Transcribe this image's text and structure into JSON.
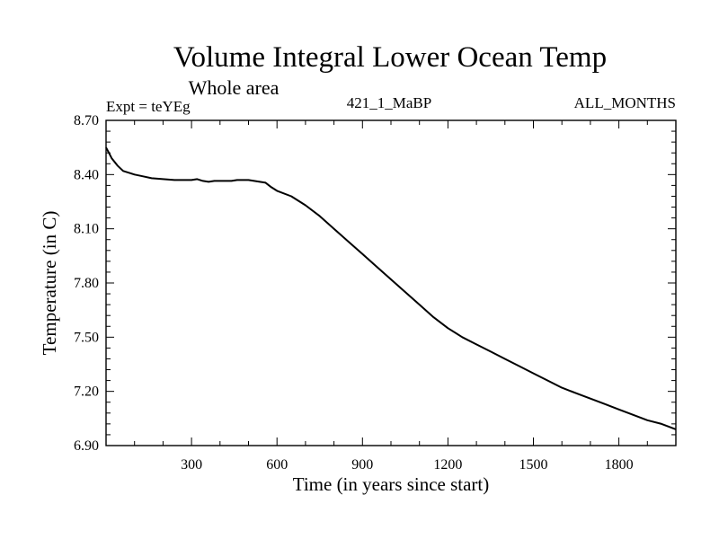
{
  "chart_data": {
    "type": "line",
    "title": "Volume Integral Lower Ocean Temp",
    "subtitle": "Whole area",
    "header_left": "Expt = teYEg",
    "header_center": "421_1_MaBP",
    "header_right": "ALL_MONTHS",
    "xlabel": "Time (in years since start)",
    "ylabel": "Temperature (in C)",
    "xlim": [
      0,
      2000
    ],
    "ylim": [
      6.9,
      8.7
    ],
    "xticks": [
      300,
      600,
      900,
      1200,
      1500,
      1800
    ],
    "xticklabels": [
      "300",
      "600",
      "900",
      "1200",
      "1500",
      "1800"
    ],
    "yticks": [
      6.9,
      7.2,
      7.5,
      7.8,
      8.1,
      8.4,
      8.7
    ],
    "yticklabels": [
      "6.90",
      "7.20",
      "7.50",
      "7.80",
      "8.10",
      "8.40",
      "8.70"
    ],
    "series": [
      {
        "name": "Volume integral lower ocean temperature",
        "x": [
          0,
          10,
          20,
          40,
          60,
          80,
          100,
          130,
          160,
          200,
          240,
          280,
          300,
          320,
          340,
          360,
          380,
          400,
          420,
          440,
          460,
          480,
          500,
          520,
          540,
          560,
          580,
          600,
          650,
          700,
          750,
          800,
          850,
          900,
          950,
          1000,
          1050,
          1100,
          1150,
          1200,
          1250,
          1300,
          1350,
          1400,
          1450,
          1500,
          1550,
          1600,
          1650,
          1700,
          1750,
          1800,
          1850,
          1900,
          1950,
          2000
        ],
        "values": [
          8.55,
          8.52,
          8.49,
          8.45,
          8.42,
          8.41,
          8.4,
          8.39,
          8.38,
          8.375,
          8.37,
          8.37,
          8.37,
          8.375,
          8.365,
          8.36,
          8.365,
          8.365,
          8.365,
          8.365,
          8.37,
          8.37,
          8.37,
          8.365,
          8.36,
          8.355,
          8.33,
          8.31,
          8.28,
          8.23,
          8.17,
          8.1,
          8.03,
          7.96,
          7.89,
          7.82,
          7.75,
          7.68,
          7.61,
          7.55,
          7.5,
          7.46,
          7.42,
          7.38,
          7.34,
          7.3,
          7.26,
          7.22,
          7.19,
          7.16,
          7.13,
          7.1,
          7.07,
          7.04,
          7.02,
          6.99
        ]
      }
    ]
  }
}
